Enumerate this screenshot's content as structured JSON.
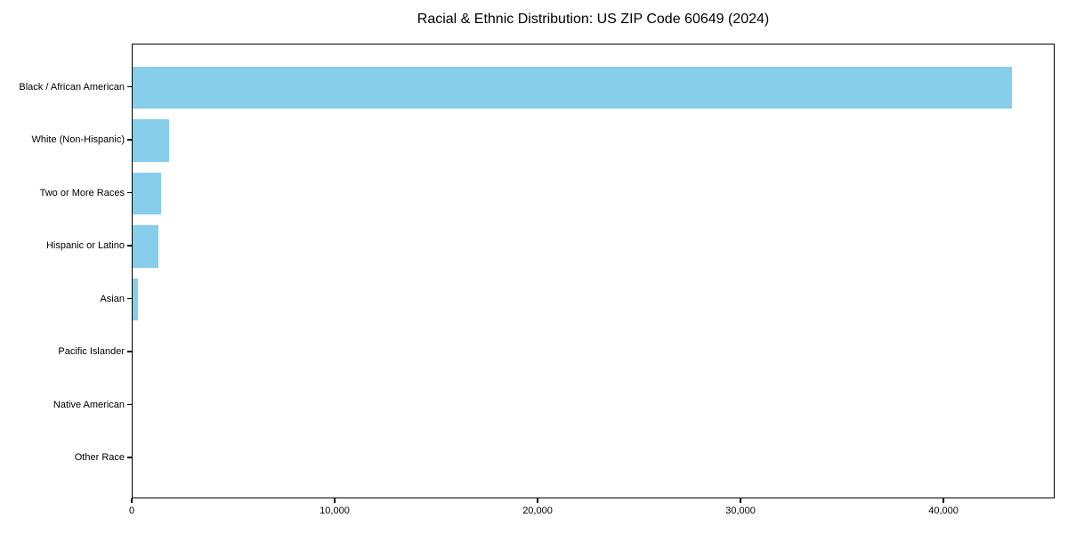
{
  "chart_data": {
    "type": "bar",
    "orientation": "horizontal",
    "title": "Racial & Ethnic Distribution: US ZIP Code 60649 (2024)",
    "categories": [
      "Black / African American",
      "White (Non-Hispanic)",
      "Two or More Races",
      "Hispanic or Latino",
      "Asian",
      "Pacific Islander",
      "Native American",
      "Other Race"
    ],
    "values": [
      43330,
      1810,
      1420,
      1260,
      250,
      0,
      0,
      0
    ],
    "xlabel": "",
    "ylabel": "",
    "xlim": [
      0,
      45480
    ],
    "xticks": {
      "values": [
        0,
        10000,
        20000,
        30000,
        40000
      ],
      "labels": [
        "0",
        "10,000",
        "20,000",
        "30,000",
        "40,000"
      ]
    },
    "grid": false,
    "legend": null,
    "colors": {
      "bar": "#87CEEB",
      "spine": "#000000",
      "text": "#000000",
      "background": "#ffffff"
    }
  }
}
